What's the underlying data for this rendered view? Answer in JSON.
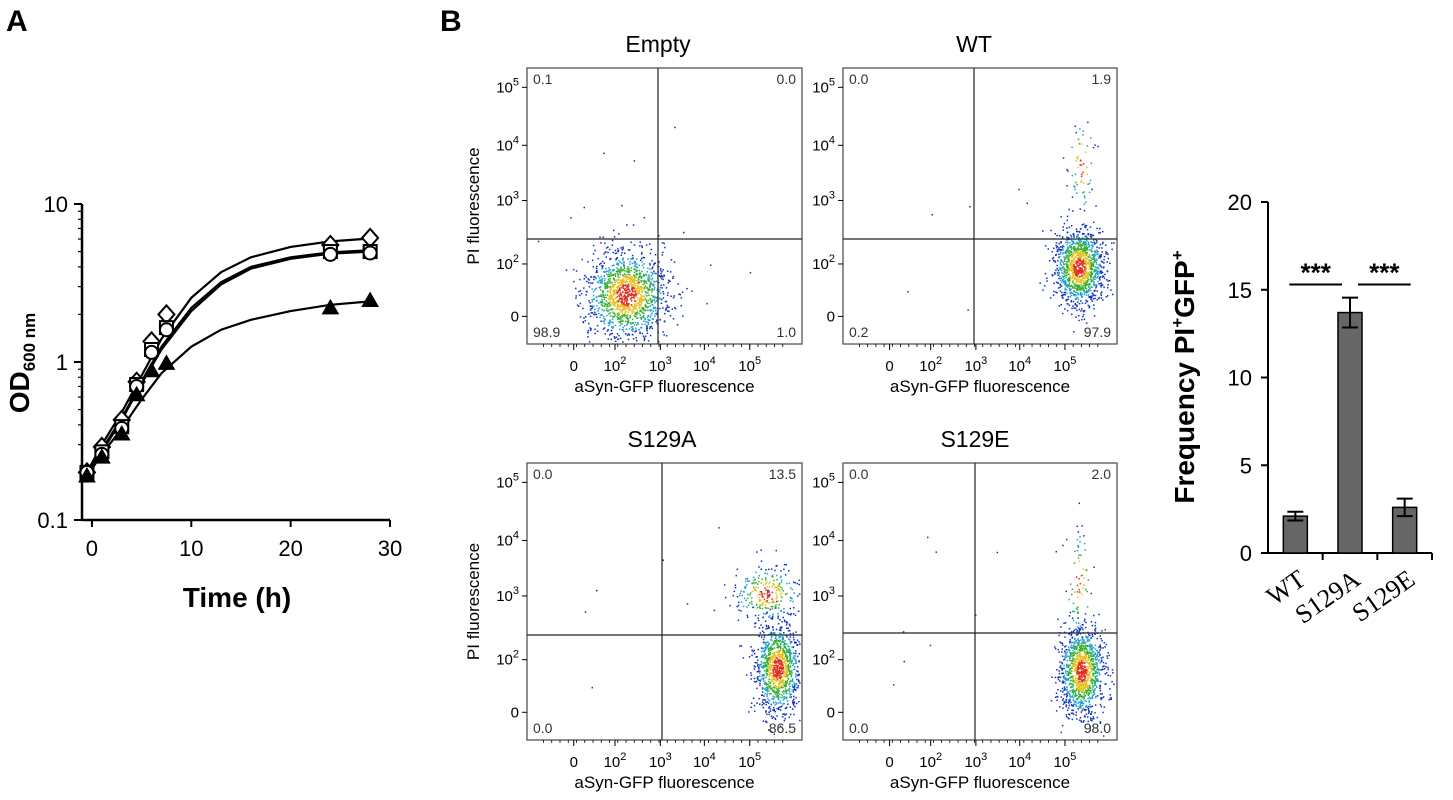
{
  "panels": {
    "A": "A",
    "B": "B"
  },
  "chart_data": [
    {
      "type": "line",
      "panel": "A",
      "xlabel": "Time (h)",
      "ylabel_main": "OD",
      "ylabel_sub": "600 nm",
      "yscale": "log",
      "xlim": [
        -1,
        30
      ],
      "ylim": [
        0.1,
        10
      ],
      "xticks": [
        0,
        10,
        20,
        30
      ],
      "yticks": [
        {
          "v": 0.1,
          "label": "0.1"
        },
        {
          "v": 1,
          "label": "1"
        },
        {
          "v": 10,
          "label": "10"
        }
      ],
      "series": [
        {
          "marker": "diamond-open",
          "x": [
            -0.5,
            1,
            3,
            4.5,
            6,
            7.5,
            24,
            28
          ],
          "y": [
            0.2,
            0.29,
            0.43,
            0.75,
            1.35,
            2.0,
            5.5,
            6.1
          ],
          "curve": {
            "x": [
              -0.5,
              1,
              3,
              5,
              7,
              10,
              13,
              16,
              20,
              24,
              28
            ],
            "y": [
              0.2,
              0.3,
              0.48,
              0.82,
              1.4,
              2.55,
              3.7,
              4.6,
              5.35,
              5.8,
              6.05
            ]
          }
        },
        {
          "marker": "square-open",
          "x": [
            -0.5,
            1,
            3,
            4.5,
            6,
            7.5,
            24,
            28
          ],
          "y": [
            0.2,
            0.27,
            0.39,
            0.72,
            1.2,
            1.65,
            5.0,
            5.0
          ],
          "curve": {
            "x": [
              -0.5,
              1,
              3,
              5,
              7,
              10,
              13,
              16,
              20,
              24,
              28
            ],
            "y": [
              0.2,
              0.28,
              0.44,
              0.75,
              1.25,
              2.2,
              3.2,
              4.0,
              4.6,
              4.95,
              5.1
            ]
          }
        },
        {
          "marker": "circle-open",
          "x": [
            -0.5,
            1,
            3,
            4.5,
            6,
            7.5,
            24,
            28
          ],
          "y": [
            0.2,
            0.26,
            0.38,
            0.7,
            1.15,
            1.6,
            4.8,
            4.9
          ],
          "curve": {
            "x": [
              -0.5,
              1,
              3,
              5,
              7,
              10,
              13,
              16,
              20,
              24,
              28
            ],
            "y": [
              0.2,
              0.27,
              0.43,
              0.73,
              1.2,
              2.1,
              3.1,
              3.9,
              4.5,
              4.85,
              5.0
            ]
          }
        },
        {
          "marker": "triangle-filled",
          "x": [
            -0.5,
            1,
            3,
            4.5,
            6,
            7.5,
            24,
            28
          ],
          "y": [
            0.19,
            0.25,
            0.35,
            0.62,
            0.88,
            0.98,
            2.2,
            2.45
          ],
          "curve": {
            "x": [
              -0.5,
              1,
              3,
              5,
              7,
              10,
              13,
              16,
              20,
              24,
              28
            ],
            "y": [
              0.19,
              0.26,
              0.38,
              0.58,
              0.85,
              1.25,
              1.6,
              1.85,
              2.1,
              2.3,
              2.42
            ]
          }
        }
      ]
    },
    {
      "type": "scatter",
      "panel": "B",
      "subtype": "flow-cytometry",
      "xlabel": "aSyn-GFP fluorescence",
      "ylabel": "PI fluorescence",
      "xticks": [
        "0",
        "10",
        "10",
        "10",
        "10"
      ],
      "xtick_exp": [
        "",
        "2",
        "3",
        "4",
        "5"
      ],
      "yticks": [
        "0",
        "10",
        "10",
        "10",
        "10"
      ],
      "ytick_exp": [
        "",
        "2",
        "3",
        "4",
        "5"
      ],
      "plots": [
        {
          "title": "Empty",
          "quadrants": {
            "ul": "0.1",
            "ur": "0.0",
            "ll": "98.9",
            "lr": "1.0"
          }
        },
        {
          "title": "WT",
          "quadrants": {
            "ul": "0.0",
            "ur": "1.9",
            "ll": "0.2",
            "lr": "97.9"
          }
        },
        {
          "title": "S129A",
          "quadrants": {
            "ul": "0.0",
            "ur": "13.5",
            "ll": "0.0",
            "lr": "86.5"
          }
        },
        {
          "title": "S129E",
          "quadrants": {
            "ul": "0.0",
            "ur": "2.0",
            "ll": "0.0",
            "lr": "98.0"
          }
        }
      ]
    },
    {
      "type": "bar",
      "panel": "B",
      "ylabel_main": "Frequency PI",
      "ylabel_sup1": "+",
      "ylabel_mid": "GFP",
      "ylabel_sup2": "+",
      "categories": [
        "WT",
        "S129A",
        "S129E"
      ],
      "values": [
        2.1,
        13.7,
        2.6
      ],
      "errors": [
        0.25,
        0.85,
        0.5
      ],
      "ylim": [
        0,
        20
      ],
      "yticks": [
        0,
        5,
        10,
        15,
        20
      ],
      "bar_color": "#666666",
      "significance": [
        {
          "from": 0,
          "to": 1,
          "label": "***"
        },
        {
          "from": 1,
          "to": 2,
          "label": "***"
        }
      ]
    }
  ]
}
